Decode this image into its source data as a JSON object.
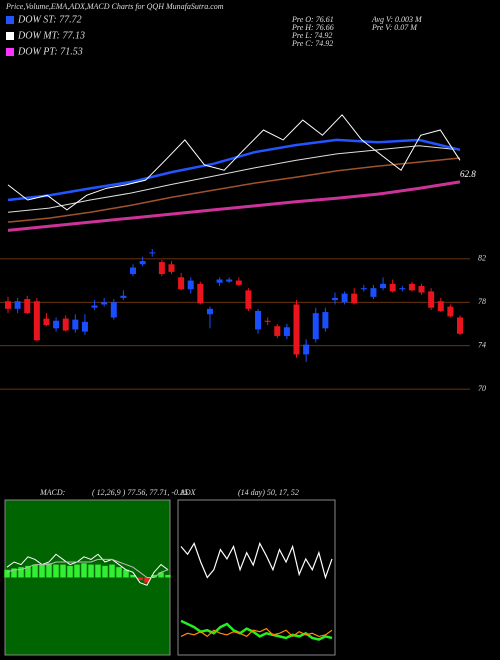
{
  "header": {
    "title": "Price,Volume,EMA,ADX,MACD Charts for QQH MunafaSutra.com"
  },
  "legend": [
    {
      "label": "DOW ST: 77.72",
      "color": "#2255ff"
    },
    {
      "label": "DOW MT: 77.13",
      "color": "#ffffff"
    },
    {
      "label": "DOW PT: 71.53",
      "color": "#ff33ff"
    }
  ],
  "info_left": [
    "Pre O: 76.61",
    "Pre H: 76.66",
    "Pre L: 74.92",
    "Pre C: 74.92"
  ],
  "info_right": [
    "Avg V: 0.003 M",
    "Pre V: 0.07 M"
  ],
  "chart_data": [
    {
      "type": "line",
      "ylim": [
        62,
        92
      ],
      "annotation": "62.8",
      "series": [
        {
          "color": "#cc3399",
          "width": 3,
          "values": [
            62.8,
            63.5,
            64.2,
            64.9,
            65.6,
            66.3,
            67.0,
            67.7,
            68.3,
            69.0,
            70.0,
            71.1
          ]
        },
        {
          "color": "#a0522d",
          "width": 1.5,
          "values": [
            64.2,
            64.9,
            65.9,
            67.1,
            68.5,
            69.7,
            70.9,
            71.9,
            73.0,
            73.8,
            74.5,
            75.2
          ]
        },
        {
          "color": "#dddddd",
          "width": 1,
          "values": [
            65.9,
            66.6,
            68.0,
            69.2,
            70.7,
            72.1,
            73.5,
            74.8,
            75.9,
            76.6,
            77.3,
            76.6
          ]
        },
        {
          "color": "#2255ff",
          "width": 2.5,
          "values": [
            68.0,
            68.8,
            70.0,
            71.1,
            72.8,
            74.2,
            76.2,
            77.4,
            78.3,
            77.9,
            78.3,
            76.6
          ]
        },
        {
          "color": "#ffffff",
          "width": 1,
          "values": [
            70.6,
            68.0,
            68.8,
            66.3,
            68.8,
            70.0,
            70.6,
            71.4,
            74.8,
            78.3,
            74.0,
            73.1,
            76.6,
            80.0,
            78.3,
            81.7,
            79.1,
            82.6,
            78.3,
            75.7,
            73.1,
            79.1,
            80.0,
            74.8
          ]
        }
      ]
    },
    {
      "type": "candlestick",
      "ylim": [
        69,
        83
      ],
      "yticks": [
        82,
        78,
        74,
        70
      ],
      "grid": true,
      "up_color": "#1a4fff",
      "down_color": "#e8141e",
      "open": [
        78.1,
        77.4,
        78.3,
        78.1,
        76.5,
        75.6,
        76.5,
        75.5,
        75.3,
        77.5,
        77.8,
        76.6,
        78.4,
        80.6,
        81.5,
        82.5,
        81.7,
        81.5,
        80.3,
        79.2,
        79.7,
        76.9,
        79.8,
        79.9,
        80.0,
        79.1,
        75.5,
        76.3,
        75.8,
        74.9,
        77.8,
        73.2,
        74.6,
        75.6,
        78.2,
        78.0,
        78.8,
        79.2,
        78.5,
        79.3,
        79.7,
        79.2,
        79.7,
        79.5,
        79.0,
        78.1,
        77.6,
        76.6
      ],
      "high": [
        78.5,
        78.4,
        78.6,
        78.4,
        77.0,
        76.6,
        76.8,
        76.9,
        76.9,
        78.2,
        78.4,
        78.3,
        79.1,
        81.5,
        82.2,
        82.9,
        81.9,
        81.8,
        80.7,
        80.3,
        79.9,
        77.6,
        80.3,
        80.3,
        80.3,
        79.3,
        77.4,
        76.6,
        76.0,
        76.0,
        78.2,
        74.6,
        77.5,
        77.5,
        78.9,
        79.0,
        79.3,
        79.6,
        79.6,
        80.3,
        80.1,
        79.5,
        79.9,
        79.7,
        79.3,
        78.4,
        77.8,
        76.8
      ],
      "low": [
        77.0,
        77.0,
        76.9,
        74.4,
        75.8,
        75.3,
        75.3,
        75.2,
        75.0,
        77.3,
        77.6,
        76.4,
        78.2,
        80.4,
        81.3,
        82.2,
        80.4,
        80.6,
        79.1,
        78.8,
        77.8,
        75.6,
        79.5,
        79.8,
        79.5,
        77.2,
        75.1,
        75.9,
        74.7,
        74.6,
        72.9,
        72.5,
        74.3,
        75.3,
        77.8,
        77.8,
        77.8,
        79.0,
        78.3,
        79.1,
        78.9,
        79.0,
        79.0,
        78.7,
        77.3,
        77.1,
        76.6,
        75.0
      ],
      "close": [
        77.4,
        78.1,
        77.0,
        74.5,
        75.9,
        76.3,
        75.4,
        76.4,
        76.2,
        77.7,
        78.0,
        78.0,
        78.6,
        81.2,
        81.8,
        82.6,
        80.6,
        80.8,
        79.2,
        80.0,
        77.9,
        77.4,
        80.1,
        80.1,
        79.6,
        77.4,
        77.2,
        76.2,
        74.9,
        75.7,
        73.2,
        74.1,
        77.0,
        77.1,
        78.4,
        78.8,
        77.9,
        79.3,
        79.3,
        79.7,
        79.0,
        79.3,
        79.1,
        78.9,
        77.5,
        77.2,
        76.7,
        75.1
      ]
    },
    {
      "type": "macd",
      "title": "MACD:",
      "subtitle": "( 12,26,9 ) 77.56, 77.71, -0.15",
      "ylim": [
        -3,
        3
      ],
      "background": "#006400",
      "hist_up_color": "#33ee33",
      "hist_down_color": "#ee2222",
      "macd_color": "#ffffff",
      "signal_color": "#bbbbbb",
      "histogram": [
        0.3,
        0.35,
        0.4,
        0.45,
        0.5,
        0.5,
        0.55,
        0.5,
        0.5,
        0.45,
        0.5,
        0.55,
        0.5,
        0.5,
        0.45,
        0.5,
        0.4,
        0.3,
        0.1,
        -0.1,
        -0.2,
        0.1,
        0.2,
        0.1
      ],
      "macd": [
        0.4,
        0.6,
        0.5,
        0.8,
        0.7,
        0.5,
        0.6,
        0.9,
        0.7,
        0.5,
        0.6,
        0.8,
        0.7,
        0.9,
        0.6,
        0.7,
        0.5,
        0.3,
        0.2,
        -0.2,
        -0.3,
        0.2,
        0.5,
        0.3
      ],
      "signal": [
        0.2,
        0.3,
        0.3,
        0.4,
        0.5,
        0.5,
        0.5,
        0.6,
        0.6,
        0.6,
        0.6,
        0.6,
        0.6,
        0.7,
        0.7,
        0.7,
        0.6,
        0.5,
        0.4,
        0.2,
        0.0,
        0.0,
        0.2,
        0.3
      ]
    },
    {
      "type": "adx",
      "title": "ADX",
      "subtitle": "(14 day) 50, 17, 52",
      "ylim": [
        0,
        100
      ],
      "series": [
        {
          "color": "#ffffff",
          "values": [
            70,
            65,
            72,
            60,
            50,
            55,
            68,
            62,
            70,
            55,
            66,
            58,
            72,
            64,
            55,
            68,
            60,
            70,
            52,
            62,
            55,
            66,
            50,
            62
          ]
        },
        {
          "color": "#22ee22",
          "values": [
            22,
            20,
            18,
            15,
            16,
            14,
            18,
            20,
            16,
            14,
            17,
            15,
            12,
            14,
            13,
            12,
            11,
            13,
            12,
            14,
            11,
            10,
            12,
            11
          ]
        },
        {
          "color": "#ff8800",
          "values": [
            12,
            14,
            13,
            15,
            12,
            16,
            14,
            13,
            15,
            14,
            12,
            16,
            15,
            17,
            13,
            14,
            16,
            12,
            15,
            13,
            14,
            12,
            13,
            16
          ]
        }
      ]
    }
  ]
}
